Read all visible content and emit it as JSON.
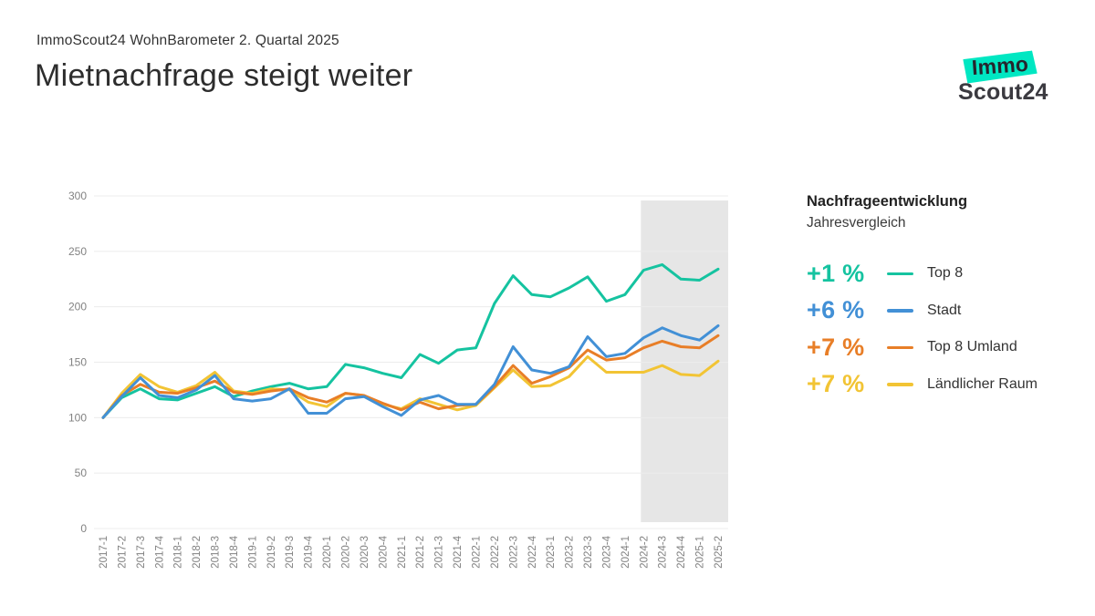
{
  "header": {
    "kicker": "ImmoScout24 WohnBarometer 2. Quartal 2025",
    "title": "Mietnachfrage steigt weiter"
  },
  "logo": {
    "line1": "Immo",
    "line2": "Scout24",
    "badge_color": "#00e7c2"
  },
  "legend": {
    "heading": "Nachfrageentwicklung",
    "subheading": "Jahresvergleich",
    "items": [
      {
        "change": "+1 %",
        "label": "Top 8",
        "color": "#15c3a0"
      },
      {
        "change": "+6 %",
        "label": "Stadt",
        "color": "#4290d6"
      },
      {
        "change": "+7 %",
        "label": "Top 8 Umland",
        "color": "#e87e27"
      },
      {
        "change": "+7 %",
        "label": "Ländlicher Raum",
        "color": "#f2c434"
      }
    ]
  },
  "chart_data": {
    "type": "line",
    "title": "Nachfrageentwicklung Jahresvergleich",
    "xlabel": "",
    "ylabel": "",
    "ylim": [
      0,
      300
    ],
    "yticks": [
      0,
      50,
      100,
      150,
      200,
      250,
      300
    ],
    "grid": "horizontal",
    "legend_position": "right",
    "highlight_region": {
      "from": "2024-2",
      "to": "2025-2",
      "color": "#e6e6e6",
      "meaning": "last four quarters highlight"
    },
    "x": [
      "2017-1",
      "2017-2",
      "2017-3",
      "2017-4",
      "2018-1",
      "2018-2",
      "2018-3",
      "2018-4",
      "2019-1",
      "2019-2",
      "2019-3",
      "2019-4",
      "2020-1",
      "2020-2",
      "2020-3",
      "2020-4",
      "2021-1",
      "2021-2",
      "2021-3",
      "2021-4",
      "2022-1",
      "2022-2",
      "2022-3",
      "2022-4",
      "2023-1",
      "2023-2",
      "2023-3",
      "2023-4",
      "2024-1",
      "2024-2",
      "2024-3",
      "2024-4",
      "2025-1",
      "2025-2"
    ],
    "series": [
      {
        "name": "Top 8",
        "color": "#15c3a0",
        "yoy_change": "+1 %",
        "values": [
          100,
          118,
          126,
          117,
          116,
          122,
          128,
          119,
          124,
          128,
          131,
          126,
          128,
          148,
          145,
          140,
          136,
          157,
          149,
          161,
          163,
          203,
          228,
          211,
          209,
          217,
          227,
          205,
          211,
          233,
          238,
          225,
          224,
          234
        ]
      },
      {
        "name": "Stadt",
        "color": "#4290d6",
        "yoy_change": "+6 %",
        "values": [
          100,
          119,
          136,
          120,
          118,
          125,
          138,
          117,
          115,
          117,
          126,
          104,
          104,
          117,
          119,
          110,
          102,
          116,
          120,
          112,
          112,
          130,
          164,
          143,
          140,
          146,
          173,
          155,
          158,
          172,
          181,
          174,
          170,
          183
        ]
      },
      {
        "name": "Top 8 Umland",
        "color": "#e87e27",
        "yoy_change": "+7 %",
        "values": [
          100,
          120,
          130,
          123,
          122,
          127,
          133,
          123,
          121,
          124,
          126,
          118,
          114,
          122,
          120,
          113,
          107,
          114,
          108,
          111,
          112,
          128,
          147,
          131,
          137,
          145,
          161,
          152,
          154,
          163,
          169,
          164,
          163,
          174
        ]
      },
      {
        "name": "Ländlicher Raum",
        "color": "#f2c434",
        "yoy_change": "+7 %",
        "values": [
          100,
          122,
          139,
          128,
          123,
          129,
          141,
          124,
          122,
          126,
          125,
          114,
          110,
          122,
          120,
          112,
          108,
          117,
          112,
          107,
          111,
          127,
          143,
          128,
          129,
          137,
          155,
          141,
          141,
          141,
          147,
          139,
          138,
          151
        ]
      }
    ]
  }
}
